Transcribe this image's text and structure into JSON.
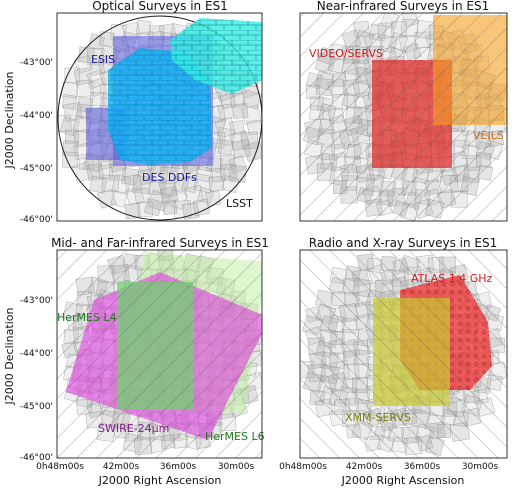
{
  "panels": [
    {
      "title": "Optical Surveys in ES1",
      "labels": [
        {
          "text": "ESIS",
          "color": "#1a1aa0"
        },
        {
          "text": "DES DDFs",
          "color": "#1a1aa0"
        },
        {
          "text": "LSST",
          "color": "#111111"
        }
      ]
    },
    {
      "title": "Near-infrared Surveys in ES1",
      "labels": [
        {
          "text": "VIDEO/SERVS",
          "color": "#c81e1e"
        },
        {
          "text": "VEILS",
          "color": "#c0762a"
        }
      ]
    },
    {
      "title": "Mid- and Far-infrared Surveys in ES1",
      "labels": [
        {
          "text": "HerMES L4",
          "color": "#1f7a1f"
        },
        {
          "text": "SWIRE-24μm",
          "color": "#8a1a8a"
        },
        {
          "text": "HerMES L6",
          "color": "#1f7a1f"
        }
      ]
    },
    {
      "title": "Radio and X-ray Surveys in ES1",
      "labels": [
        {
          "text": "ATLAS 1.4 GHz",
          "color": "#d62020"
        },
        {
          "text": "XMM-SERVS",
          "color": "#7a7a10"
        }
      ]
    }
  ],
  "axes": {
    "ylabel": "J2000 Declination",
    "xlabel": "J2000 Right Ascension",
    "yticks": [
      "-43°00'",
      "-44°00'",
      "-45°00'",
      "-46°00'"
    ],
    "xticks": [
      "0h48m00s",
      "42m00s",
      "36m00s",
      "30m00s"
    ]
  },
  "colors": {
    "esis": "#5a5ae0",
    "des": "#00c8ff",
    "des_ddf": "#30e8e0",
    "video": "#e02020",
    "veils": "#f5a020",
    "hermes": "#70d070",
    "swire": "#e040e0",
    "atlas": "#f03030",
    "xmm": "#c8c830",
    "background": "#b4b4b4"
  }
}
